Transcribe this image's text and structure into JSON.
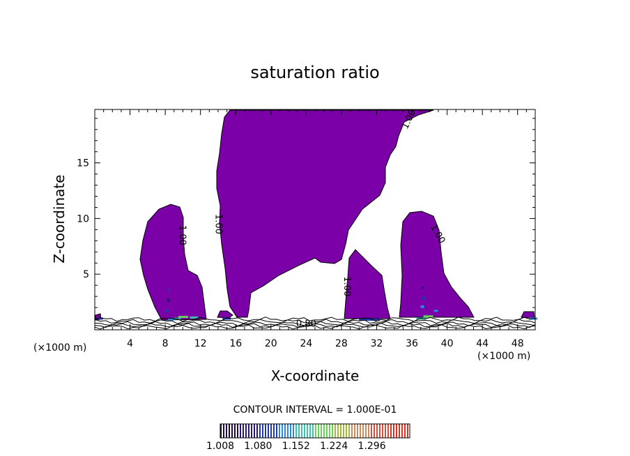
{
  "chart_data": {
    "type": "contour",
    "title": "saturation ratio",
    "xlabel": "X-coordinate",
    "ylabel": "Z-coordinate",
    "x_unit_label": "(×1000 m)",
    "xlim": [
      0,
      50
    ],
    "ylim": [
      0,
      19.8
    ],
    "x_ticks": [
      4,
      8,
      12,
      16,
      20,
      24,
      28,
      32,
      36,
      40,
      44,
      48
    ],
    "y_ticks": [
      5,
      10,
      15
    ],
    "fill_color": "#7b00a8",
    "contour_interval_text": "CONTOUR INTERVAL = 1.000E-01",
    "contour_labels": [
      {
        "text": "1.00",
        "x": 9.9,
        "z": 8.5,
        "angle": 90
      },
      {
        "text": "1.00",
        "x": 14.0,
        "z": 9.5,
        "angle": 90
      },
      {
        "text": "1.00",
        "x": 28.6,
        "z": 3.9,
        "angle": 90
      },
      {
        "text": "1.00",
        "x": 35.7,
        "z": 18.9,
        "angle": -65
      },
      {
        "text": "1.00",
        "x": 38.9,
        "z": 8.6,
        "angle": 60
      },
      {
        "text": "0.80",
        "x": 24.0,
        "z": 0.5,
        "angle": 0
      }
    ],
    "colorbar": {
      "labels": [
        "1.008",
        "1.080",
        "1.152",
        "1.224",
        "1.296"
      ],
      "min": 1.008,
      "max": 1.368,
      "colors": [
        "#1a0a35",
        "#2a1870",
        "#1d3aa8",
        "#2a88d8",
        "#3cc2a8",
        "#6ad05a",
        "#a6b83a",
        "#c88a5a",
        "#d05040",
        "#e03020"
      ]
    }
  }
}
